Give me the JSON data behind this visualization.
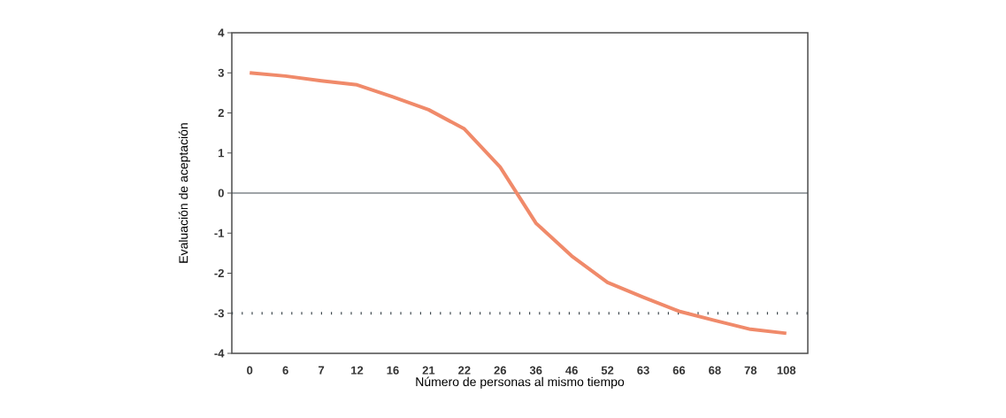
{
  "chart_data": {
    "type": "line",
    "xlabel": "Número de personas al mismo tiempo",
    "ylabel": "Evaluación de aceptación",
    "categories": [
      "0",
      "6",
      "7",
      "12",
      "16",
      "21",
      "22",
      "26",
      "36",
      "46",
      "52",
      "63",
      "66",
      "68",
      "78",
      "108"
    ],
    "values": [
      3.0,
      2.92,
      2.8,
      2.7,
      2.4,
      2.08,
      1.6,
      0.65,
      -0.75,
      -1.57,
      -2.23,
      -2.6,
      -2.95,
      -3.18,
      -3.4,
      -3.5
    ],
    "color": "#f08a6a",
    "ylim": [
      -4,
      4
    ],
    "yticks": [
      -4,
      -3,
      -2,
      -1,
      0,
      1,
      2,
      3,
      4
    ],
    "grid": false,
    "marker": "none",
    "line_style": "solid",
    "ref_lines": [
      {
        "axis": "y",
        "value": 0,
        "color": "#404a50",
        "line_style": "solid"
      },
      {
        "axis": "y",
        "value": -3,
        "color": "#404a50",
        "line_style": "dashed"
      }
    ]
  }
}
